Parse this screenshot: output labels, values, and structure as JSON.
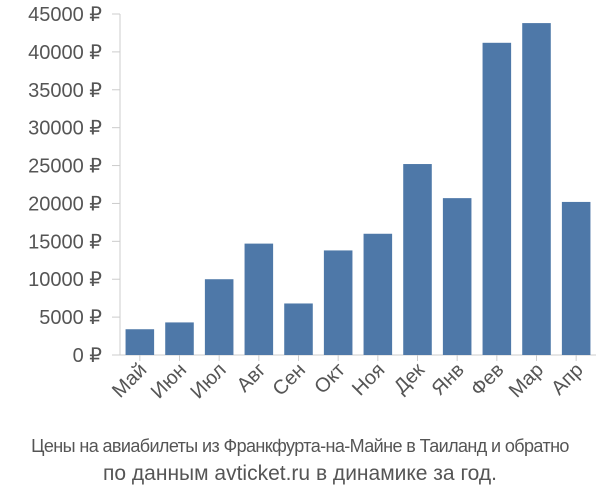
{
  "chart_data": {
    "type": "bar",
    "categories": [
      "Май",
      "Июн",
      "Июл",
      "Авг",
      "Сен",
      "Окт",
      "Ноя",
      "Дек",
      "Янв",
      "Фев",
      "Мар",
      "Апр"
    ],
    "values": [
      3400,
      4300,
      10000,
      14700,
      6800,
      13800,
      16000,
      25200,
      20700,
      41200,
      43800,
      20200
    ],
    "ylim": [
      0,
      45000
    ],
    "yticks": [
      0,
      5000,
      10000,
      15000,
      20000,
      25000,
      30000,
      35000,
      40000,
      45000
    ],
    "ytick_suffix": " ₽",
    "bar_color": "#4e78a8",
    "grid": false,
    "title": "",
    "xlabel": "",
    "ylabel": ""
  },
  "caption": {
    "line1": "Цены на авиабилеты из Франкфурта-на-Майне в Таиланд и обратно",
    "line2": "по данным avticket.ru в динамике за год."
  }
}
